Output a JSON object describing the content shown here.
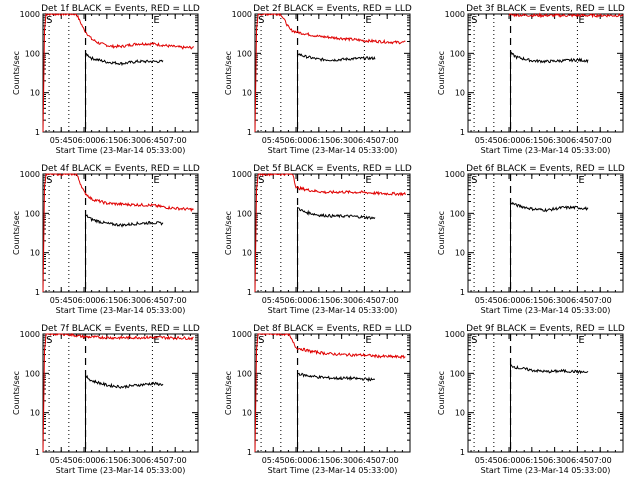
{
  "figure": {
    "x_axis_label": "Start Time (23-Mar-14 05:33:00)",
    "y_axis_label": "Counts/sec",
    "y_tick_labels": [
      "1",
      "10",
      "100",
      "1000"
    ],
    "x_tick_labels": [
      "05:45",
      "06:00",
      "06:15",
      "06:30",
      "06:45",
      "07:00"
    ],
    "marker_start": "S",
    "marker_end": "E"
  },
  "chart_data": [
    {
      "type": "line",
      "title": "Det 1f BLACK = Events, RED = LLD",
      "y_scale": "log",
      "ylim": [
        1,
        1000
      ],
      "xlim": [
        "05:33",
        "07:15"
      ],
      "dotted_lines": [
        "05:37",
        "05:50",
        "06:45"
      ],
      "dashed_line": "06:01",
      "series": [
        {
          "name": "LLD",
          "color": "#e00000",
          "points": [
            [
              "05:33",
              1
            ],
            [
              "05:34",
              400
            ],
            [
              "05:35",
              1000
            ],
            [
              "05:55",
              1000
            ],
            [
              "06:00",
              400
            ],
            [
              "06:05",
              230
            ],
            [
              "06:10",
              180
            ],
            [
              "06:18",
              150
            ],
            [
              "06:25",
              150
            ],
            [
              "06:35",
              175
            ],
            [
              "06:45",
              175
            ],
            [
              "06:55",
              155
            ],
            [
              "07:05",
              140
            ],
            [
              "07:12",
              140
            ]
          ]
        },
        {
          "name": "Events",
          "color": "#000000",
          "points": [
            [
              "06:01",
              1
            ],
            [
              "06:01",
              100
            ],
            [
              "06:05",
              75
            ],
            [
              "06:15",
              60
            ],
            [
              "06:25",
              55
            ],
            [
              "06:35",
              62
            ],
            [
              "06:45",
              62
            ],
            [
              "06:52",
              62
            ]
          ]
        }
      ]
    },
    {
      "type": "line",
      "title": "Det 2f BLACK = Events, RED = LLD",
      "y_scale": "log",
      "ylim": [
        1,
        1000
      ],
      "xlim": [
        "05:33",
        "07:15"
      ],
      "dotted_lines": [
        "05:37",
        "05:50",
        "06:45"
      ],
      "dashed_line": "06:01",
      "series": [
        {
          "name": "LLD",
          "color": "#e00000",
          "points": [
            [
              "05:33",
              1
            ],
            [
              "05:34",
              400
            ],
            [
              "05:35",
              1000
            ],
            [
              "05:50",
              1000
            ],
            [
              "05:56",
              400
            ],
            [
              "06:00",
              350
            ],
            [
              "06:05",
              320
            ],
            [
              "06:15",
              270
            ],
            [
              "06:25",
              250
            ],
            [
              "06:35",
              230
            ],
            [
              "06:45",
              210
            ],
            [
              "06:55",
              200
            ],
            [
              "07:05",
              190
            ],
            [
              "07:12",
              190
            ]
          ]
        },
        {
          "name": "Events",
          "color": "#000000",
          "points": [
            [
              "06:01",
              1
            ],
            [
              "06:01",
              100
            ],
            [
              "06:05",
              85
            ],
            [
              "06:15",
              70
            ],
            [
              "06:25",
              68
            ],
            [
              "06:35",
              72
            ],
            [
              "06:45",
              75
            ],
            [
              "06:52",
              75
            ]
          ]
        }
      ]
    },
    {
      "type": "line",
      "title": "Det 3f BLACK = Events, RED = LLD",
      "y_scale": "log",
      "ylim": [
        1,
        1000
      ],
      "xlim": [
        "05:33",
        "07:15"
      ],
      "dotted_lines": [
        "05:37",
        "05:50",
        "06:45"
      ],
      "dashed_line": "06:01",
      "series": [
        {
          "name": "LLD",
          "color": "#e00000",
          "points": [
            [
              "06:00",
              950
            ],
            [
              "06:20",
              920
            ],
            [
              "06:45",
              920
            ],
            [
              "07:15",
              920
            ]
          ]
        },
        {
          "name": "Events",
          "color": "#000000",
          "points": [
            [
              "06:01",
              1
            ],
            [
              "06:01",
              100
            ],
            [
              "06:05",
              80
            ],
            [
              "06:15",
              65
            ],
            [
              "06:25",
              62
            ],
            [
              "06:35",
              65
            ],
            [
              "06:45",
              68
            ],
            [
              "06:52",
              65
            ]
          ]
        }
      ]
    },
    {
      "type": "line",
      "title": "Det 4f BLACK = Events, RED = LLD",
      "y_scale": "log",
      "ylim": [
        1,
        1000
      ],
      "xlim": [
        "05:33",
        "07:15"
      ],
      "dotted_lines": [
        "05:37",
        "05:50",
        "06:45"
      ],
      "dashed_line": "06:01",
      "series": [
        {
          "name": "LLD",
          "color": "#e00000",
          "points": [
            [
              "05:33",
              1
            ],
            [
              "05:34",
              500
            ],
            [
              "05:35",
              1000
            ],
            [
              "05:55",
              1000
            ],
            [
              "06:00",
              350
            ],
            [
              "06:05",
              230
            ],
            [
              "06:15",
              180
            ],
            [
              "06:25",
              170
            ],
            [
              "06:35",
              165
            ],
            [
              "06:45",
              160
            ],
            [
              "06:55",
              140
            ],
            [
              "07:05",
              130
            ],
            [
              "07:12",
              125
            ]
          ]
        },
        {
          "name": "Events",
          "color": "#000000",
          "points": [
            [
              "06:01",
              1
            ],
            [
              "06:01",
              90
            ],
            [
              "06:05",
              70
            ],
            [
              "06:15",
              55
            ],
            [
              "06:25",
              50
            ],
            [
              "06:35",
              55
            ],
            [
              "06:45",
              58
            ],
            [
              "06:52",
              55
            ]
          ]
        }
      ]
    },
    {
      "type": "line",
      "title": "Det 5f BLACK = Events, RED = LLD",
      "y_scale": "log",
      "ylim": [
        1,
        1000
      ],
      "xlim": [
        "05:33",
        "07:15"
      ],
      "dotted_lines": [
        "05:37",
        "05:50",
        "06:45"
      ],
      "dashed_line": "06:01",
      "series": [
        {
          "name": "LLD",
          "color": "#e00000",
          "points": [
            [
              "05:33",
              1
            ],
            [
              "05:34",
              400
            ],
            [
              "05:35",
              1000
            ],
            [
              "05:58",
              1000
            ],
            [
              "06:00",
              450
            ],
            [
              "06:10",
              380
            ],
            [
              "06:20",
              340
            ],
            [
              "06:30",
              350
            ],
            [
              "06:45",
              340
            ],
            [
              "06:55",
              320
            ],
            [
              "07:12",
              310
            ]
          ]
        },
        {
          "name": "Events",
          "color": "#000000",
          "points": [
            [
              "06:01",
              1
            ],
            [
              "06:01",
              140
            ],
            [
              "06:05",
              110
            ],
            [
              "06:15",
              90
            ],
            [
              "06:25",
              85
            ],
            [
              "06:35",
              85
            ],
            [
              "06:45",
              80
            ],
            [
              "06:52",
              75
            ]
          ]
        }
      ]
    },
    {
      "type": "line",
      "title": "Det 6f BLACK = Events, RED = LLD",
      "y_scale": "log",
      "ylim": [
        1,
        1000
      ],
      "xlim": [
        "05:33",
        "07:15"
      ],
      "dotted_lines": [
        "05:37",
        "05:50",
        "06:45"
      ],
      "dashed_line": "06:01",
      "series": [
        {
          "name": "Events",
          "color": "#000000",
          "points": [
            [
              "06:01",
              1
            ],
            [
              "06:01",
              190
            ],
            [
              "06:05",
              160
            ],
            [
              "06:15",
              130
            ],
            [
              "06:25",
              120
            ],
            [
              "06:35",
              140
            ],
            [
              "06:45",
              140
            ],
            [
              "06:52",
              130
            ]
          ]
        }
      ]
    },
    {
      "type": "line",
      "title": "Det 7f BLACK = Events, RED = LLD",
      "y_scale": "log",
      "ylim": [
        1,
        1000
      ],
      "xlim": [
        "05:33",
        "07:15"
      ],
      "dotted_lines": [
        "05:37",
        "05:50",
        "06:45"
      ],
      "dashed_line": "06:01",
      "series": [
        {
          "name": "LLD",
          "color": "#e00000",
          "points": [
            [
              "05:33",
              1
            ],
            [
              "05:34",
              400
            ],
            [
              "05:35",
              1000
            ],
            [
              "05:48",
              1000
            ],
            [
              "06:00",
              850
            ],
            [
              "06:20",
              800
            ],
            [
              "06:45",
              820
            ],
            [
              "07:12",
              780
            ]
          ]
        },
        {
          "name": "Events",
          "color": "#000000",
          "points": [
            [
              "06:01",
              1
            ],
            [
              "06:01",
              85
            ],
            [
              "06:05",
              65
            ],
            [
              "06:15",
              50
            ],
            [
              "06:25",
              45
            ],
            [
              "06:35",
              50
            ],
            [
              "06:45",
              55
            ],
            [
              "06:52",
              52
            ]
          ]
        }
      ]
    },
    {
      "type": "line",
      "title": "Det 8f BLACK = Events, RED = LLD",
      "y_scale": "log",
      "ylim": [
        1,
        1000
      ],
      "xlim": [
        "05:33",
        "07:15"
      ],
      "dotted_lines": [
        "05:37",
        "05:50",
        "06:45"
      ],
      "dashed_line": "06:01",
      "series": [
        {
          "name": "LLD",
          "color": "#e00000",
          "points": [
            [
              "05:33",
              1
            ],
            [
              "05:34",
              400
            ],
            [
              "05:35",
              1000
            ],
            [
              "05:55",
              1000
            ],
            [
              "06:00",
              450
            ],
            [
              "06:10",
              360
            ],
            [
              "06:20",
              320
            ],
            [
              "06:30",
              300
            ],
            [
              "06:45",
              290
            ],
            [
              "06:55",
              270
            ],
            [
              "07:12",
              260
            ]
          ]
        },
        {
          "name": "Events",
          "color": "#000000",
          "points": [
            [
              "06:01",
              1
            ],
            [
              "06:01",
              100
            ],
            [
              "06:05",
              90
            ],
            [
              "06:15",
              80
            ],
            [
              "06:25",
              75
            ],
            [
              "06:35",
              75
            ],
            [
              "06:45",
              72
            ],
            [
              "06:52",
              68
            ]
          ]
        }
      ]
    },
    {
      "type": "line",
      "title": "Det 9f BLACK = Events, RED = LLD",
      "y_scale": "log",
      "ylim": [
        1,
        1000
      ],
      "xlim": [
        "05:33",
        "07:15"
      ],
      "dotted_lines": [
        "05:37",
        "05:50",
        "06:45"
      ],
      "dashed_line": "06:01",
      "series": [
        {
          "name": "Events",
          "color": "#000000",
          "points": [
            [
              "06:01",
              1
            ],
            [
              "06:01",
              160
            ],
            [
              "06:05",
              140
            ],
            [
              "06:15",
              120
            ],
            [
              "06:25",
              110
            ],
            [
              "06:35",
              115
            ],
            [
              "06:45",
              110
            ],
            [
              "06:52",
              105
            ]
          ]
        }
      ]
    }
  ]
}
